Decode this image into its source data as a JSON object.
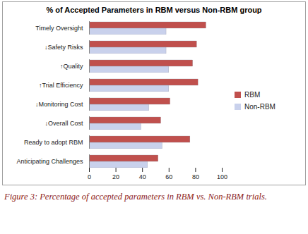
{
  "chart_data": {
    "type": "bar",
    "orientation": "horizontal",
    "title": "% of Accepted Parameters in RBM versus Non-RBM group",
    "caption": "Figure 3: Percentage of accepted parameters in RBM vs. Non-RBM trials.",
    "categories": [
      "Timely Oversight",
      "↓Safety Risks",
      "↑Quality",
      "↑Trial Efficiency",
      "↓Monitoring Cost",
      "↓Overall Cost",
      "Ready to adopt RBM",
      "Anticipating Challenges"
    ],
    "series": [
      {
        "name": "RBM",
        "color": "#c0504d",
        "values": [
          88,
          81,
          78,
          82,
          61,
          54,
          76,
          52
        ]
      },
      {
        "name": "Non-RBM",
        "color": "#c9d1ec",
        "values": [
          58,
          58,
          60,
          60,
          45,
          39,
          55,
          44
        ]
      }
    ],
    "xlim": [
      0,
      100
    ],
    "xticks": [
      0,
      20,
      40,
      60,
      80,
      100
    ],
    "grid": false,
    "legend": "right"
  }
}
